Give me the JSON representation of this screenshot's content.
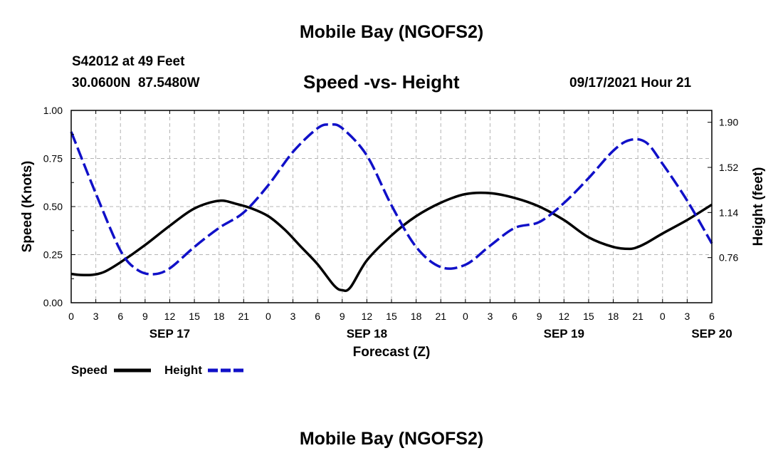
{
  "header": {
    "title": "Mobile Bay (NGOFS2)",
    "station": "S42012 at 49 Feet",
    "coords": "30.0600N  87.5480W",
    "subtitle": "Speed -vs- Height",
    "datetime": "09/17/2021 Hour 21"
  },
  "footer": {
    "title": "Mobile Bay (NGOFS2)"
  },
  "legend": {
    "speed": "Speed",
    "height": "Height"
  },
  "colors": {
    "speed": "#000000",
    "height": "#1010c8",
    "grid": "#b4b4b4"
  },
  "chart_data": {
    "type": "line",
    "xlabel": "Forecast (Z)",
    "ylabel_left": "Speed (Knots)",
    "ylabel_right": "Height (feet)",
    "x_range_hours": [
      0,
      78
    ],
    "ylim_left": [
      0,
      1.0
    ],
    "ylim_right": [
      0.38,
      2.0
    ],
    "left_ticks": [
      "0.00",
      "0.25",
      "0.50",
      "0.75",
      "1.00"
    ],
    "right_ticks": [
      "0.76",
      "1.14",
      "1.52",
      "1.90"
    ],
    "x_tick_labels": [
      "0",
      "3",
      "6",
      "9",
      "12",
      "15",
      "18",
      "21",
      "0",
      "3",
      "6",
      "9",
      "12",
      "15",
      "18",
      "21",
      "0",
      "3",
      "6",
      "9",
      "12",
      "15",
      "18",
      "21",
      "0",
      "3",
      "6"
    ],
    "date_labels": [
      {
        "text": "SEP 17",
        "hour": 12
      },
      {
        "text": "SEP 18",
        "hour": 36
      },
      {
        "text": "SEP 19",
        "hour": 60
      },
      {
        "text": "SEP 20",
        "hour": 78
      }
    ],
    "grid": true,
    "series": [
      {
        "name": "Speed",
        "axis": "left",
        "x": [
          0,
          1,
          2.5,
          4,
          6,
          9,
          12,
          15,
          18,
          20,
          22,
          24,
          26,
          28,
          30,
          32,
          33,
          34,
          36,
          39,
          42,
          45,
          48,
          51,
          54,
          57,
          60,
          63,
          66,
          68,
          69,
          70,
          72,
          75,
          78
        ],
        "y": [
          0.15,
          0.145,
          0.145,
          0.16,
          0.21,
          0.3,
          0.4,
          0.49,
          0.53,
          0.515,
          0.49,
          0.45,
          0.38,
          0.29,
          0.2,
          0.09,
          0.065,
          0.08,
          0.22,
          0.35,
          0.45,
          0.52,
          0.565,
          0.57,
          0.545,
          0.5,
          0.43,
          0.34,
          0.29,
          0.28,
          0.29,
          0.31,
          0.36,
          0.43,
          0.51
        ]
      },
      {
        "name": "Height",
        "axis": "right",
        "x": [
          0,
          3,
          6,
          8,
          10,
          12,
          15,
          18,
          21,
          24,
          27,
          30,
          31.5,
          33,
          36,
          39,
          42,
          45,
          48,
          51,
          54,
          57,
          60,
          63,
          66,
          68,
          70,
          72,
          75,
          78
        ],
        "y": [
          1.82,
          1.3,
          0.82,
          0.66,
          0.62,
          0.67,
          0.85,
          1.01,
          1.14,
          1.37,
          1.65,
          1.85,
          1.88,
          1.85,
          1.62,
          1.2,
          0.85,
          0.68,
          0.7,
          0.86,
          1.01,
          1.06,
          1.22,
          1.43,
          1.66,
          1.75,
          1.73,
          1.55,
          1.24,
          0.88
        ]
      }
    ]
  }
}
